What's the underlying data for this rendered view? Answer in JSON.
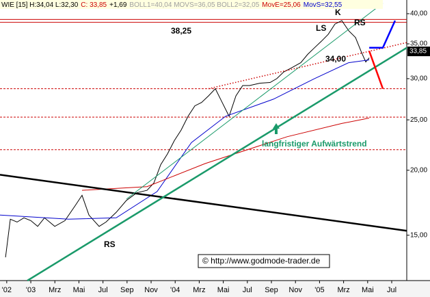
{
  "chart_data": {
    "type": "line",
    "log_scale": true,
    "header": [
      {
        "text": "WIE [15] H:34,04 L:32,30",
        "color": "#000000"
      },
      {
        "text": "C: 33,85",
        "color": "#cc0000"
      },
      {
        "text": "+1,69",
        "color": "#000000"
      },
      {
        "text": "BOLL1=40,04 MOVS=36,05 BOLL2=32,05",
        "color": "#a0a0a0"
      },
      {
        "text": "MovE=25,06",
        "color": "#cc0000"
      },
      {
        "text": "MovS=32,55",
        "color": "#0000cc"
      }
    ],
    "xlim": [
      -2.56,
      31.25
    ],
    "xticks": [
      {
        "value": -2,
        "label": "'02"
      },
      {
        "value": 0,
        "label": "'03"
      },
      {
        "value": 2,
        "label": "Mrz"
      },
      {
        "value": 4,
        "label": "Mai"
      },
      {
        "value": 6,
        "label": "Jul"
      },
      {
        "value": 8,
        "label": "Sep"
      },
      {
        "value": 10,
        "label": "Nov"
      },
      {
        "value": 12,
        "label": "'04"
      },
      {
        "value": 14,
        "label": "Mrz"
      },
      {
        "value": 16,
        "label": "Mai"
      },
      {
        "value": 18,
        "label": "Jul"
      },
      {
        "value": 20,
        "label": "Sep"
      },
      {
        "value": 22,
        "label": "Nov"
      },
      {
        "value": 24,
        "label": "'05"
      },
      {
        "value": 26,
        "label": "Mrz"
      },
      {
        "value": 28,
        "label": "Mai"
      },
      {
        "value": 30,
        "label": "Jul"
      }
    ],
    "ylim": [
      12.27,
      42.5
    ],
    "yticks": [
      {
        "value": 15,
        "label": "15,00"
      },
      {
        "value": 20,
        "label": "20,00"
      },
      {
        "value": 25,
        "label": "25,00"
      },
      {
        "value": 30,
        "label": "30,00"
      },
      {
        "value": 35,
        "label": "35,00"
      },
      {
        "value": 40,
        "label": "40,00"
      }
    ],
    "last_price": {
      "value": 33.85,
      "label": "33,85"
    },
    "hlines": [
      {
        "value": 39.0,
        "color": "#cc0000",
        "style": "solid"
      },
      {
        "value": 38.5,
        "color": "#cc0000",
        "style": "solid"
      },
      {
        "value": 28.7,
        "color": "#cc0000",
        "style": "dashed"
      },
      {
        "value": 25.3,
        "color": "#cc0000",
        "style": "dashed"
      },
      {
        "value": 21.9,
        "color": "#cc0000",
        "style": "dashed"
      }
    ],
    "series": [
      {
        "color": "#000000",
        "style": "thin",
        "x": [
          -2.1,
          -1.7,
          -1.14,
          -0.57,
          0,
          0.57,
          1.14,
          1.99,
          2.84,
          3.69,
          4.26,
          4.83,
          5.68,
          6.25,
          7.1,
          7.95,
          8.81,
          9.66,
          10.23,
          10.8,
          11.36,
          11.93,
          12.5,
          13.07,
          13.64,
          14.2,
          14.77,
          15.34,
          15.91,
          16.48,
          17.05,
          17.61,
          18.18,
          19.03,
          19.89,
          20.45,
          21.02,
          21.59,
          22.44,
          23.01,
          23.58,
          24.15,
          24.72,
          25.28,
          25.85,
          26.42,
          26.99,
          27.44,
          27.84,
          28.13
        ],
        "values": [
          13.6,
          16.1,
          15.9,
          16.2,
          16.0,
          15.6,
          16.2,
          15.6,
          16.0,
          17.1,
          17.9,
          16.4,
          15.6,
          15.9,
          16.6,
          17.5,
          18.1,
          18.3,
          18.9,
          20.5,
          21.5,
          22.8,
          23.9,
          25.4,
          26.6,
          27.0,
          27.8,
          28.7,
          27.0,
          25.4,
          27.8,
          29.1,
          29.1,
          29.4,
          29.5,
          30.0,
          30.9,
          31.4,
          32.2,
          33.4,
          34.4,
          35.4,
          36.5,
          38.2,
          38.8,
          37.1,
          36.0,
          33.9,
          32.3,
          32.9
        ]
      },
      {
        "color": "#0000cc",
        "style": "thin",
        "x": [
          -2.56,
          3.13,
          7.1,
          10.5,
          13.35,
          16.19,
          20.17,
          23.58,
          26.42,
          28.13
        ],
        "values": [
          16.4,
          16.1,
          16.2,
          18.2,
          22.6,
          25.4,
          27.4,
          30.0,
          32.2,
          32.6
        ]
      },
      {
        "color": "#cc0000",
        "style": "thin",
        "x": [
          4.26,
          9.66,
          14.49,
          21.3,
          25.85,
          28.13
        ],
        "values": [
          18.3,
          18.6,
          20.6,
          23.2,
          24.6,
          25.2
        ]
      },
      {
        "color": "#000000",
        "style": "thick",
        "x": [
          -2.56,
          31.25
        ],
        "values": [
          19.6,
          15.3
        ]
      },
      {
        "color": "#1a9a6a",
        "style": "thick",
        "x": [
          -0.28,
          31.25
        ],
        "values": [
          12.27,
          34.4
        ]
      },
      {
        "color": "#1a9a6a",
        "style": "thin",
        "x": [
          7.95,
          29.26
        ],
        "values": [
          17.6,
          41.9
        ]
      },
      {
        "color": "#cc0000",
        "style": "dotted",
        "x": [
          14.77,
          31.25
        ],
        "values": [
          28.7,
          35.2
        ]
      },
      {
        "color": "#ff0000",
        "style": "thick",
        "x": [
          28.13,
          29.26
        ],
        "values": [
          33.9,
          28.7
        ]
      },
      {
        "color": "#0000ff",
        "style": "thick",
        "x": [
          28.13,
          29.26,
          30.28
        ],
        "values": [
          34.4,
          34.4,
          38.8
        ]
      }
    ],
    "annotations": [
      {
        "text": "38,25",
        "color": "#000000"
      },
      {
        "text": "34,00",
        "color": "#000000"
      },
      {
        "text": "K",
        "color": "#000000"
      },
      {
        "text": "LS",
        "color": "#000000"
      },
      {
        "text": "RS",
        "color": "#000000"
      },
      {
        "text": "RS",
        "color": "#000000"
      },
      {
        "text": "langfristiger Aufwärtstrend",
        "color": "#1a9a6a"
      }
    ],
    "copyright": "© http://www.godmode-trader.de"
  }
}
